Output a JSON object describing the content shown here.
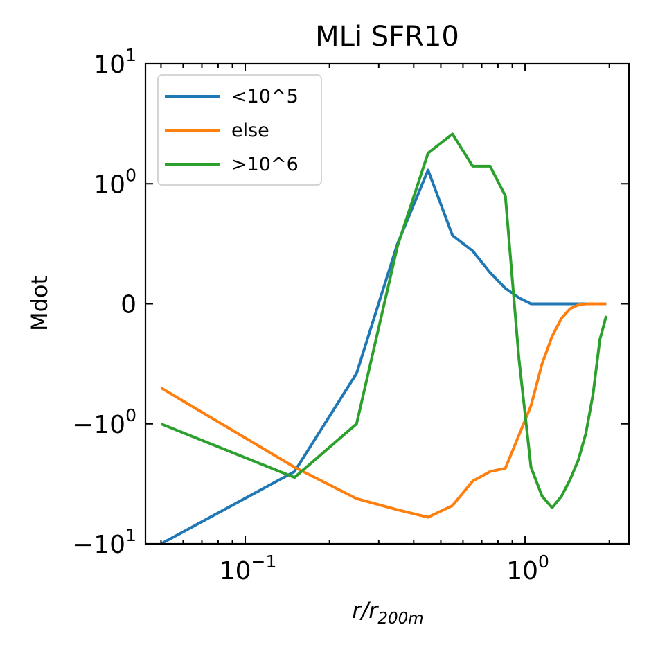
{
  "chart_data": {
    "type": "line",
    "title": "MLi SFR10",
    "xlabel": "r/r_200m",
    "xlabel_main": "r/r",
    "xlabel_sub": "200m",
    "ylabel": "Mdot",
    "xscale": "log",
    "yscale": "symlog",
    "xlim": [
      0.044,
      2.35
    ],
    "ylim": [
      -10,
      10
    ],
    "x_ticks": [
      {
        "value": 0.1,
        "base": "10",
        "exp": "−1"
      },
      {
        "value": 1,
        "base": "10",
        "exp": "0"
      }
    ],
    "y_ticks": [
      {
        "value": 10,
        "base": "10",
        "exp": "1"
      },
      {
        "value": 1,
        "base": "10",
        "exp": "0"
      },
      {
        "value": 0,
        "base": "0",
        "exp": ""
      },
      {
        "value": -1,
        "base": "−10",
        "exp": "0"
      },
      {
        "value": -10,
        "base": "−10",
        "exp": "1"
      }
    ],
    "legend_position": "top-left",
    "grid": false,
    "series": [
      {
        "name": "<10^5",
        "color": "#1f77b4",
        "x": [
          0.05,
          0.15,
          0.25,
          0.35,
          0.45,
          0.55,
          0.65,
          0.75,
          0.85,
          0.95,
          1.05,
          1.15,
          1.25,
          1.35,
          1.45,
          1.55,
          1.65,
          1.75,
          1.85,
          1.95
        ],
        "y": [
          -10,
          -2.5,
          -0.58,
          0.5,
          1.3,
          0.57,
          0.44,
          0.26,
          0.13,
          0.05,
          0.0,
          0.0,
          0.0,
          0.0,
          0.0,
          0.0,
          0.0,
          0.0,
          0.0,
          0.0
        ]
      },
      {
        "name": "else",
        "color": "#ff7f0e",
        "x": [
          0.05,
          0.15,
          0.25,
          0.35,
          0.45,
          0.55,
          0.65,
          0.75,
          0.85,
          0.95,
          1.05,
          1.15,
          1.25,
          1.35,
          1.45,
          1.55,
          1.65,
          1.75,
          1.85,
          1.95
        ],
        "y": [
          -0.7,
          -2.3,
          -4.2,
          -5.2,
          -6.0,
          -4.8,
          -3.0,
          -2.5,
          -2.35,
          -1.25,
          -0.85,
          -0.5,
          -0.27,
          -0.12,
          -0.04,
          -0.01,
          0.0,
          0.0,
          0.0,
          0.0
        ]
      },
      {
        "name": ">10^6",
        "color": "#2ca02c",
        "x": [
          0.05,
          0.15,
          0.25,
          0.35,
          0.45,
          0.55,
          0.65,
          0.75,
          0.85,
          0.95,
          1.05,
          1.15,
          1.25,
          1.35,
          1.45,
          1.55,
          1.65,
          1.75,
          1.85,
          1.95
        ],
        "y": [
          -1.0,
          -2.8,
          -1.0,
          0.48,
          1.8,
          2.6,
          1.4,
          1.4,
          0.9,
          -0.45,
          -2.3,
          -4.0,
          -5.0,
          -4.0,
          -2.9,
          -2.0,
          -1.2,
          -0.75,
          -0.3,
          -0.1
        ]
      }
    ]
  }
}
